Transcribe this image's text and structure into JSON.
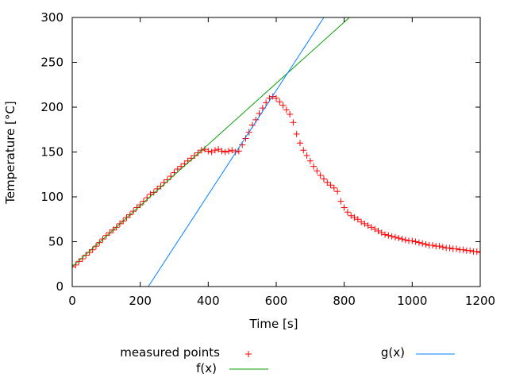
{
  "chart_data": {
    "type": "scatter",
    "title": "",
    "xlabel": "Time [s]",
    "ylabel": "Temperature [°C]",
    "xlim": [
      0,
      1200
    ],
    "ylim": [
      0,
      300
    ],
    "xticks": [
      0,
      200,
      400,
      600,
      800,
      1000,
      1200
    ],
    "yticks": [
      0,
      50,
      100,
      150,
      200,
      250,
      300
    ],
    "grid": false,
    "legend_placement": "bottom",
    "series": [
      {
        "name": "measured points",
        "style": "points",
        "marker": "plus",
        "color": "#ff0000",
        "x": [
          0,
          10,
          20,
          30,
          40,
          50,
          60,
          70,
          80,
          90,
          100,
          110,
          120,
          130,
          140,
          150,
          160,
          170,
          180,
          190,
          200,
          210,
          220,
          230,
          240,
          250,
          260,
          270,
          280,
          290,
          300,
          310,
          320,
          330,
          340,
          350,
          360,
          370,
          380,
          390,
          400,
          410,
          420,
          430,
          440,
          450,
          460,
          470,
          480,
          490,
          500,
          510,
          520,
          530,
          540,
          550,
          560,
          570,
          580,
          590,
          600,
          610,
          620,
          630,
          640,
          650,
          660,
          670,
          680,
          690,
          700,
          710,
          720,
          730,
          740,
          750,
          760,
          770,
          780,
          790,
          800,
          810,
          820,
          830,
          840,
          850,
          860,
          870,
          880,
          890,
          900,
          910,
          920,
          930,
          940,
          950,
          960,
          970,
          980,
          990,
          1000,
          1010,
          1020,
          1030,
          1040,
          1050,
          1060,
          1070,
          1080,
          1090,
          1100,
          1110,
          1120,
          1130,
          1140,
          1150,
          1160,
          1170,
          1180,
          1190,
          1200
        ],
        "y": [
          22,
          24,
          28,
          31,
          35,
          38,
          41,
          45,
          49,
          53,
          57,
          60,
          63,
          66,
          70,
          73,
          77,
          80,
          84,
          88,
          91,
          95,
          99,
          103,
          105,
          109,
          112,
          116,
          119,
          123,
          127,
          131,
          134,
          137,
          140,
          143,
          146,
          149,
          152,
          153,
          151,
          150,
          152,
          153,
          151,
          150,
          151,
          152,
          150,
          151,
          158,
          165,
          172,
          180,
          186,
          193,
          199,
          205,
          210,
          212,
          210,
          206,
          202,
          197,
          192,
          183,
          170,
          160,
          152,
          146,
          140,
          134,
          129,
          124,
          120,
          116,
          113,
          110,
          106,
          95,
          88,
          83,
          79,
          77,
          75,
          72,
          70,
          68,
          66,
          64,
          62,
          60,
          58,
          57,
          56,
          55,
          54,
          53,
          52,
          51,
          51,
          50,
          49,
          48,
          47,
          46,
          46,
          45,
          45,
          44,
          43,
          43,
          42,
          42,
          41,
          41,
          40,
          40,
          39,
          39,
          38
        ]
      },
      {
        "name": "f(x)",
        "style": "line",
        "color": "#00a000",
        "slope": 0.341,
        "intercept": 22
      },
      {
        "name": "g(x)",
        "style": "line",
        "color": "#0080ff",
        "slope": 0.581,
        "intercept": -130
      }
    ]
  }
}
